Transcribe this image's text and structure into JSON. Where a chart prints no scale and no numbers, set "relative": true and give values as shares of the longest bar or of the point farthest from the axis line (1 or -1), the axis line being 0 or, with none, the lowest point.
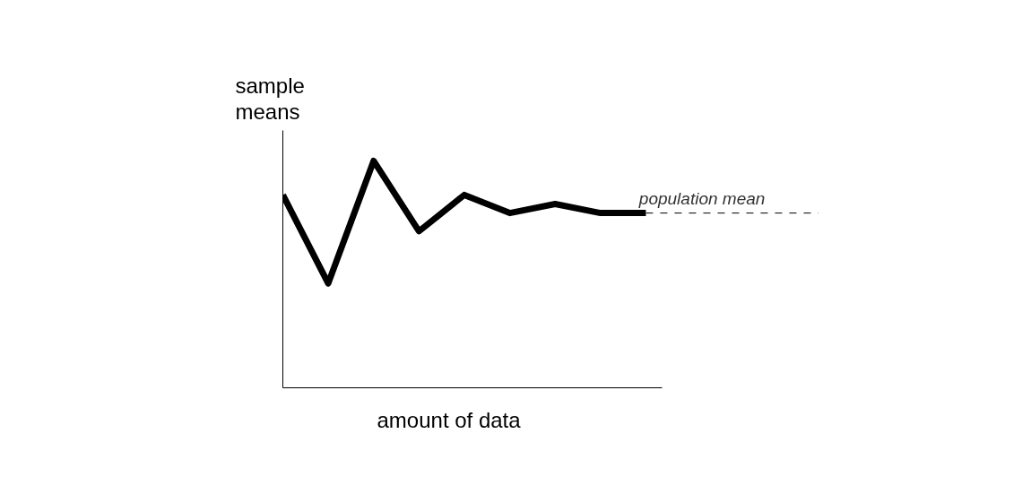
{
  "chart_data": {
    "type": "line",
    "relative": true,
    "xlabel": "amount of data",
    "ylabel": "sample\nmeans",
    "categories": [
      null,
      null,
      null,
      null,
      null,
      null,
      null,
      null,
      null
    ],
    "series": [
      {
        "color": "#000000",
        "values": [
          0.85,
          0.46,
          1,
          0.69,
          0.85,
          0.77,
          0.81,
          0.77,
          0.77
        ]
      }
    ],
    "ref_lines": [
      {
        "axis": "y",
        "value": 0.77,
        "label": "population mean",
        "color": "#000000",
        "line_style": "dashed"
      }
    ],
    "line_style": "solid"
  }
}
